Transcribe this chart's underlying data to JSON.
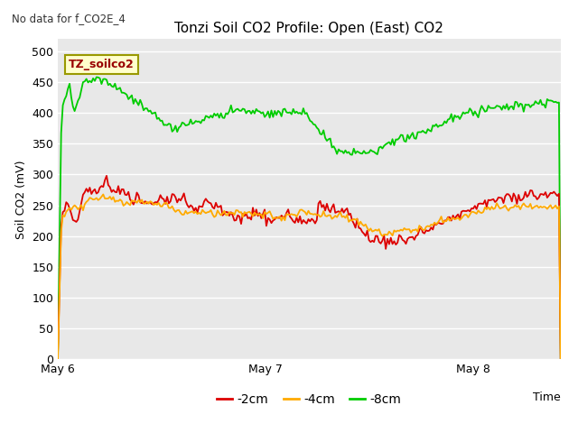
{
  "title": "Tonzi Soil CO2 Profile: Open (East) CO2",
  "no_data_text": "No data for f_CO2E_4",
  "ylabel": "Soil CO2 (mV)",
  "xlabel": "Time",
  "ylim": [
    0,
    520
  ],
  "yticks": [
    0,
    50,
    100,
    150,
    200,
    250,
    300,
    350,
    400,
    450,
    500
  ],
  "xtick_labels": [
    "May 6",
    "May 7",
    "May 8"
  ],
  "background_color": "#ffffff",
  "plot_bg_color": "#e8e8e8",
  "legend_label": "TZ_soilco2",
  "legend_box_facecolor": "#ffffcc",
  "legend_box_edgecolor": "#999900",
  "line_colors": {
    "2cm": "#dd0000",
    "4cm": "#ffaa00",
    "8cm": "#00cc00"
  }
}
